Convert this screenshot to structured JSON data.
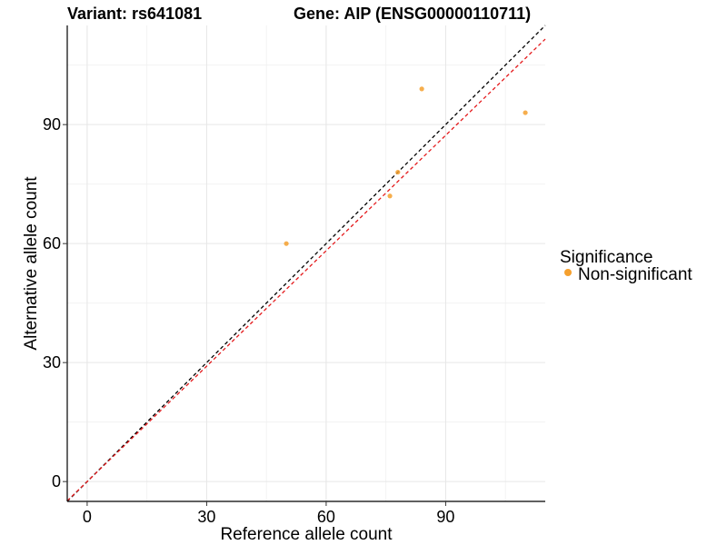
{
  "chart_data": {
    "type": "scatter",
    "title_variant": "Variant: rs641081",
    "title_gene": "Gene: AIP (ENSG00000110711)",
    "xlabel": "Reference allele count",
    "ylabel": "Alternative allele count",
    "xlim": [
      -5,
      115
    ],
    "ylim": [
      -5,
      115
    ],
    "x_ticks": [
      0,
      30,
      60,
      90
    ],
    "y_ticks": [
      0,
      30,
      60,
      90
    ],
    "grid": true,
    "legend": {
      "title": "Significance",
      "position": "right",
      "entries": [
        {
          "label": "Non-significant",
          "color": "#F5A02E"
        }
      ]
    },
    "series": [
      {
        "name": "Non-significant",
        "color": "#F5A02E",
        "points": [
          {
            "x": 50,
            "y": 60
          },
          {
            "x": 76,
            "y": 72
          },
          {
            "x": 78,
            "y": 78
          },
          {
            "x": 84,
            "y": 99
          },
          {
            "x": 110,
            "y": 93
          }
        ]
      }
    ],
    "reference_lines": [
      {
        "name": "identity-line",
        "slope": 1.0,
        "intercept": 0,
        "color": "#000000",
        "dash": true
      },
      {
        "name": "fit-line",
        "slope": 0.97,
        "intercept": 0,
        "color": "#E41A1C",
        "dash": true
      }
    ]
  }
}
